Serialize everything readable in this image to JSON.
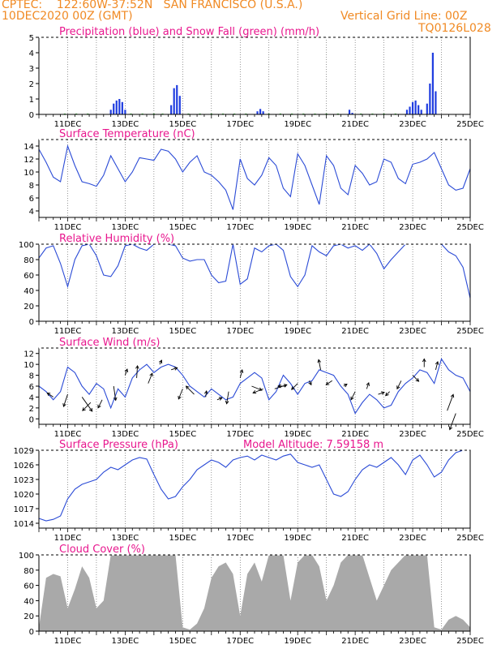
{
  "header": {
    "line1": "CPTEC:    122:60W-37:52N   SAN FRANCISCO (U.S.A.)",
    "line2": "10DEC2020 00Z (GMT)",
    "grid_note": "Vertical Grid Line: 00Z",
    "code": "TQ0126L028"
  },
  "colors": {
    "header": "#f08a24",
    "title": "#e8178e",
    "line": "#2b4bd6",
    "precip": "#1f3de0",
    "snow": "#1fb51f",
    "wind_arrow": "#000000",
    "cloud": "#a9a9a9",
    "frame": "#000000",
    "grid": "#555555"
  },
  "x_axis": {
    "labels": [
      "11DEC",
      "13DEC",
      "15DEC",
      "17DEC",
      "19DEC",
      "21DEC",
      "23DEC",
      "25DEC"
    ],
    "label_days": [
      1,
      3,
      5,
      7,
      9,
      11,
      13,
      15
    ],
    "gridline_days": [
      1,
      2,
      3,
      4,
      5,
      6,
      7,
      8,
      9,
      10,
      11,
      12,
      13,
      14
    ],
    "range_days": [
      0,
      15
    ],
    "origin": "10DEC2020 00Z"
  },
  "panels": [
    {
      "id": "precip",
      "title": "Precipitation (blue) and Snow Fall (green) (mm/h)",
      "extra": "",
      "y_ticks": [
        "0",
        "1",
        "2",
        "3",
        "4",
        "5"
      ],
      "y_tick_values": [
        0,
        1,
        2,
        3,
        4,
        5
      ],
      "ylim": [
        0,
        5
      ]
    },
    {
      "id": "temp",
      "title": "Surface Temperature (nC)",
      "extra": "",
      "y_ticks": [
        "4",
        "6",
        "8",
        "10",
        "12",
        "14"
      ],
      "y_tick_values": [
        4,
        6,
        8,
        10,
        12,
        14
      ],
      "ylim": [
        3,
        15
      ]
    },
    {
      "id": "rh",
      "title": "Relative Humidity (%)",
      "extra": "",
      "y_ticks": [
        "0",
        "20",
        "40",
        "60",
        "80",
        "100"
      ],
      "y_tick_values": [
        0,
        20,
        40,
        60,
        80,
        100
      ],
      "ylim": [
        0,
        100
      ]
    },
    {
      "id": "wind",
      "title": "Surface Wind (m/s)",
      "extra": "",
      "y_ticks": [
        "0",
        "2",
        "4",
        "6",
        "8",
        "10",
        "12"
      ],
      "y_tick_values": [
        0,
        2,
        4,
        6,
        8,
        10,
        12
      ],
      "ylim": [
        -1,
        13
      ]
    },
    {
      "id": "pres",
      "title": "Surface Pressure (hPa)",
      "extra": "Model Altitude: 7.59158 m",
      "y_ticks": [
        "1014",
        "1017",
        "1020",
        "1023",
        "1026",
        "1029"
      ],
      "y_tick_values": [
        1014,
        1017,
        1020,
        1023,
        1026,
        1029
      ],
      "ylim": [
        1013,
        1029
      ]
    },
    {
      "id": "cloud",
      "title": "Cloud Cover (%)",
      "extra": "",
      "y_ticks": [
        "0",
        "20",
        "40",
        "60",
        "80",
        "100"
      ],
      "y_tick_values": [
        0,
        20,
        40,
        60,
        80,
        100
      ],
      "ylim": [
        0,
        100
      ]
    }
  ],
  "chart_data": [
    {
      "type": "bar",
      "title": "Precipitation (blue) and Snow Fall (green) (mm/h)",
      "x_unit": "days since 10DEC2020 00Z",
      "series": [
        {
          "name": "Precipitation",
          "x": [
            2.5,
            2.6,
            2.7,
            2.8,
            2.9,
            3.0,
            4.6,
            4.7,
            4.8,
            4.9,
            7.6,
            7.7,
            7.8,
            10.8,
            10.9,
            12.8,
            12.9,
            13.0,
            13.1,
            13.2,
            13.3,
            13.5,
            13.6,
            13.7,
            13.8
          ],
          "values": [
            0.3,
            0.7,
            0.9,
            1.0,
            0.8,
            0.3,
            0.6,
            1.7,
            1.9,
            1.2,
            0.2,
            0.35,
            0.2,
            0.3,
            0.1,
            0.3,
            0.5,
            0.8,
            0.9,
            0.6,
            0.3,
            0.7,
            2.0,
            4.0,
            1.5
          ]
        },
        {
          "name": "Snow Fall",
          "x": [
            0.9,
            1.3,
            1.7,
            3.2,
            3.6,
            4.0,
            4.3,
            5.2,
            5.6,
            6.0,
            6.4,
            6.8,
            7.2,
            8.0,
            8.4,
            8.8,
            9.2,
            9.6,
            10.0,
            10.4,
            11.2,
            11.6,
            12.0,
            12.4
          ],
          "values": [
            0.05,
            0.05,
            0.05,
            0.05,
            0.05,
            0.05,
            0.05,
            0.05,
            0.05,
            0.05,
            0.05,
            0.05,
            0.05,
            0.05,
            0.05,
            0.05,
            0.05,
            0.05,
            0.05,
            0.05,
            0.05,
            0.05,
            0.05,
            0.05
          ]
        }
      ],
      "ylim": [
        0,
        5
      ]
    },
    {
      "type": "line",
      "title": "Surface Temperature (nC)",
      "x": [
        0.0,
        0.25,
        0.5,
        0.75,
        1.0,
        1.25,
        1.5,
        1.75,
        2.0,
        2.25,
        2.5,
        2.75,
        3.0,
        3.25,
        3.5,
        3.75,
        4.0,
        4.25,
        4.5,
        4.75,
        5.0,
        5.25,
        5.5,
        5.75,
        6.0,
        6.25,
        6.5,
        6.75,
        7.0,
        7.25,
        7.5,
        7.75,
        8.0,
        8.25,
        8.5,
        8.75,
        9.0,
        9.25,
        9.5,
        9.75,
        10.0,
        10.25,
        10.5,
        10.75,
        11.0,
        11.25,
        11.5,
        11.75,
        12.0,
        12.25,
        12.5,
        12.75,
        13.0,
        13.25,
        13.5,
        13.75,
        14.0,
        14.25,
        14.5,
        14.75,
        15.0
      ],
      "values": [
        13.5,
        11.5,
        9.2,
        8.5,
        14.0,
        11.0,
        8.5,
        8.2,
        7.8,
        9.5,
        12.5,
        10.5,
        8.5,
        10.0,
        12.2,
        12.0,
        11.8,
        13.5,
        13.2,
        12.0,
        10.0,
        11.5,
        12.5,
        10.0,
        9.5,
        8.5,
        7.2,
        4.2,
        12.0,
        9.0,
        8.0,
        9.5,
        12.2,
        11.0,
        7.5,
        6.2,
        12.8,
        11.0,
        8.0,
        5.0,
        12.5,
        11.0,
        7.5,
        6.5,
        11.0,
        9.8,
        8.0,
        8.5,
        12.0,
        11.5,
        9.0,
        8.2,
        11.2,
        11.5,
        12.0,
        13.0,
        10.5,
        8.0,
        7.2,
        7.5,
        10.5
      ],
      "ylim": [
        3,
        15
      ]
    },
    {
      "type": "line",
      "title": "Relative Humidity (%)",
      "x": [
        0.0,
        0.25,
        0.5,
        0.75,
        1.0,
        1.25,
        1.5,
        1.75,
        2.0,
        2.25,
        2.5,
        2.75,
        3.0,
        3.25,
        3.5,
        3.75,
        4.0,
        4.25,
        4.5,
        4.75,
        5.0,
        5.25,
        5.5,
        5.75,
        6.0,
        6.25,
        6.5,
        6.75,
        7.0,
        7.25,
        7.5,
        7.75,
        8.0,
        8.25,
        8.5,
        8.75,
        9.0,
        9.25,
        9.5,
        9.75,
        10.0,
        10.25,
        10.5,
        10.75,
        11.0,
        11.25,
        11.5,
        11.75,
        12.0,
        12.25,
        12.5,
        12.75,
        13.0,
        13.25,
        13.5,
        13.75,
        14.0,
        14.25,
        14.5,
        14.75,
        15.0
      ],
      "values": [
        82,
        95,
        98,
        75,
        45,
        80,
        98,
        100,
        85,
        60,
        58,
        72,
        98,
        100,
        95,
        92,
        100,
        100,
        100,
        98,
        82,
        78,
        80,
        80,
        60,
        50,
        52,
        100,
        48,
        55,
        95,
        90,
        98,
        100,
        92,
        58,
        45,
        60,
        98,
        90,
        85,
        98,
        100,
        95,
        98,
        92,
        100,
        88,
        68,
        80,
        90,
        100,
        100,
        100,
        100,
        100,
        100,
        90,
        85,
        70,
        30
      ],
      "ylim": [
        0,
        100
      ]
    },
    {
      "type": "line",
      "title": "Surface Wind (m/s)",
      "x": [
        0.0,
        0.25,
        0.5,
        0.75,
        1.0,
        1.25,
        1.5,
        1.75,
        2.0,
        2.25,
        2.5,
        2.75,
        3.0,
        3.25,
        3.5,
        3.75,
        4.0,
        4.25,
        4.5,
        4.75,
        5.0,
        5.25,
        5.5,
        5.75,
        6.0,
        6.25,
        6.5,
        6.75,
        7.0,
        7.25,
        7.5,
        7.75,
        8.0,
        8.25,
        8.5,
        8.75,
        9.0,
        9.25,
        9.5,
        9.75,
        10.0,
        10.25,
        10.5,
        10.75,
        11.0,
        11.25,
        11.5,
        11.75,
        12.0,
        12.25,
        12.5,
        12.75,
        13.0,
        13.25,
        13.5,
        13.75,
        14.0,
        14.25,
        14.5,
        14.75,
        15.0
      ],
      "values": [
        6.0,
        5.0,
        3.5,
        5.0,
        9.5,
        8.5,
        6.0,
        4.5,
        6.5,
        5.5,
        2.0,
        5.5,
        4.0,
        7.5,
        9.0,
        10.0,
        8.5,
        9.5,
        10.0,
        9.5,
        8.0,
        6.0,
        5.0,
        4.0,
        5.5,
        4.5,
        3.5,
        4.0,
        6.5,
        7.5,
        8.5,
        7.5,
        3.5,
        5.0,
        8.0,
        6.5,
        4.5,
        6.5,
        7.0,
        9.0,
        8.5,
        8.0,
        6.0,
        4.5,
        1.0,
        3.0,
        4.5,
        3.5,
        2.0,
        2.5,
        5.0,
        6.5,
        7.5,
        9.0,
        8.5,
        6.5,
        11.0,
        9.0,
        8.0,
        7.5,
        5.0
      ],
      "ylim": [
        -1,
        13
      ]
    },
    {
      "type": "line",
      "title": "Surface Pressure (hPa)",
      "x": [
        0.0,
        0.25,
        0.5,
        0.75,
        1.0,
        1.25,
        1.5,
        1.75,
        2.0,
        2.25,
        2.5,
        2.75,
        3.0,
        3.25,
        3.5,
        3.75,
        4.0,
        4.25,
        4.5,
        4.75,
        5.0,
        5.25,
        5.5,
        5.75,
        6.0,
        6.25,
        6.5,
        6.75,
        7.0,
        7.25,
        7.5,
        7.75,
        8.0,
        8.25,
        8.5,
        8.75,
        9.0,
        9.25,
        9.5,
        9.75,
        10.0,
        10.25,
        10.5,
        10.75,
        11.0,
        11.25,
        11.5,
        11.75,
        12.0,
        12.25,
        12.5,
        12.75,
        13.0,
        13.25,
        13.5,
        13.75,
        14.0,
        14.25,
        14.5,
        14.75,
        15.0
      ],
      "values": [
        1015.0,
        1014.5,
        1014.8,
        1015.5,
        1019.0,
        1021.0,
        1022.0,
        1022.5,
        1023.0,
        1024.5,
        1025.5,
        1025.0,
        1026.0,
        1027.0,
        1027.5,
        1027.2,
        1024.0,
        1021.0,
        1019.0,
        1019.5,
        1021.5,
        1023.0,
        1025.0,
        1026.0,
        1027.0,
        1026.5,
        1025.5,
        1027.0,
        1027.5,
        1027.8,
        1027.0,
        1028.0,
        1027.5,
        1027.0,
        1027.8,
        1028.2,
        1026.5,
        1026.0,
        1025.5,
        1026.0,
        1023.0,
        1020.0,
        1019.5,
        1020.5,
        1023.0,
        1025.0,
        1026.0,
        1025.5,
        1026.5,
        1027.5,
        1026.0,
        1024.0,
        1027.0,
        1028.0,
        1026.0,
        1023.5,
        1024.5,
        1027.0,
        1028.5,
        1029.0,
        1029.0
      ],
      "ylim": [
        1013,
        1029
      ]
    },
    {
      "type": "area",
      "title": "Cloud Cover (%)",
      "x": [
        0.0,
        0.25,
        0.5,
        0.75,
        1.0,
        1.25,
        1.5,
        1.75,
        2.0,
        2.25,
        2.5,
        2.75,
        3.0,
        3.25,
        3.5,
        3.75,
        4.0,
        4.25,
        4.5,
        4.75,
        5.0,
        5.25,
        5.5,
        5.75,
        6.0,
        6.25,
        6.5,
        6.75,
        7.0,
        7.25,
        7.5,
        7.75,
        8.0,
        8.25,
        8.5,
        8.75,
        9.0,
        9.25,
        9.5,
        9.75,
        10.0,
        10.25,
        10.5,
        10.75,
        11.0,
        11.25,
        11.5,
        11.75,
        12.0,
        12.25,
        12.5,
        12.75,
        13.0,
        13.25,
        13.5,
        13.75,
        14.0,
        14.25,
        14.5,
        14.75,
        15.0
      ],
      "values": [
        5,
        70,
        75,
        72,
        30,
        55,
        85,
        70,
        30,
        40,
        100,
        100,
        100,
        100,
        100,
        100,
        100,
        100,
        100,
        100,
        5,
        2,
        10,
        30,
        70,
        85,
        90,
        75,
        20,
        75,
        90,
        65,
        100,
        100,
        100,
        40,
        90,
        100,
        100,
        85,
        40,
        60,
        90,
        100,
        100,
        100,
        70,
        40,
        60,
        80,
        90,
        100,
        100,
        100,
        100,
        5,
        2,
        15,
        20,
        15,
        5
      ],
      "ylim": [
        0,
        100
      ]
    },
    {
      "type": "scatter",
      "title": "Surface Wind (m/s) vectors",
      "x": [
        0.5,
        1.0,
        1.5,
        1.8,
        2.2,
        2.6,
        3.0,
        3.4,
        3.8,
        4.2,
        4.6,
        5.0,
        5.4,
        5.8,
        6.2,
        6.6,
        7.0,
        7.4,
        7.8,
        8.2,
        8.6,
        9.0,
        9.4,
        9.8,
        10.2,
        10.6,
        11.0,
        11.4,
        11.8,
        12.2,
        12.6,
        13.0,
        13.4,
        13.8,
        14.2,
        14.5
      ],
      "values": [
        4.0,
        4.5,
        4.0,
        3.0,
        3.5,
        6.0,
        8.0,
        7.5,
        6.5,
        10.0,
        9.0,
        5.5,
        4.5,
        4.0,
        3.5,
        5.0,
        7.5,
        6.0,
        5.5,
        5.5,
        6.0,
        6.5,
        7.0,
        9.0,
        7.0,
        6.0,
        5.0,
        5.5,
        4.5,
        5.0,
        7.0,
        8.0,
        9.5,
        9.0,
        1.5,
        1.0
      ],
      "u": [
        -1.5,
        -1.0,
        2.5,
        -2.0,
        -1.0,
        0.5,
        0.5,
        0.2,
        1.0,
        0.5,
        1.5,
        -1.0,
        -2.0,
        0.2,
        1.2,
        -0.5,
        0.5,
        2.5,
        -2.5,
        3.0,
        -2.0,
        -1.5,
        0.5,
        -0.5,
        -1.5,
        0.8,
        -1.0,
        0.5,
        1.5,
        -1.0,
        -1.0,
        1.5,
        0.0,
        0.5,
        1.5,
        -1.5
      ],
      "v": [
        1.0,
        -3.0,
        -3.5,
        -2.0,
        -2.0,
        -3.5,
        1.5,
        3.0,
        2.5,
        1.0,
        0.5,
        -2.5,
        2.0,
        1.5,
        0.5,
        -3.0,
        2.0,
        -1.0,
        -1.0,
        1.0,
        0.0,
        -1.5,
        -1.0,
        2.5,
        -1.0,
        0.5,
        -2.0,
        1.5,
        0.5,
        -1.0,
        -2.0,
        -1.5,
        2.0,
        2.0,
        4.0,
        -4.0
      ],
      "ylim": [
        -1,
        13
      ]
    }
  ]
}
